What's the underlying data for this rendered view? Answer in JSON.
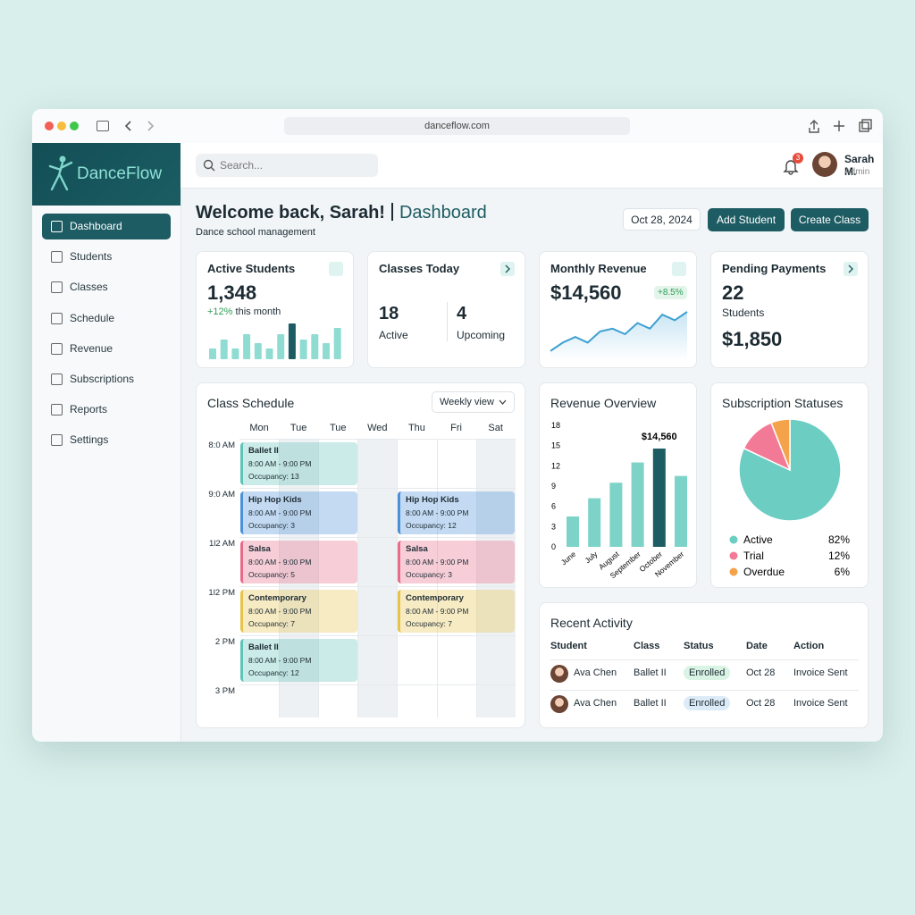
{
  "browser": {
    "url": "danceflow.com"
  },
  "sidebar": {
    "brand": "DanceFlow",
    "nav": [
      "Dashboard",
      "Students",
      "Classes",
      "Schedule",
      "Revenue",
      "Subscriptions",
      "Reports",
      "Settings"
    ]
  },
  "header": {
    "search_placeholder": "Search...",
    "notifications": 3,
    "user": {
      "name": "Sarah M.",
      "role": "Admin"
    }
  },
  "page": {
    "greeting": "Welcome back, Sarah!",
    "title": "Dashboard",
    "subtitle": "Dance school management",
    "date": "Oct 28, 2024",
    "actions": [
      "Add Student",
      "Create Class"
    ]
  },
  "cards": {
    "active_students": {
      "title": "Active Students",
      "value": "1,348",
      "change": "+12%",
      "change_note": "this month",
      "bars": [
        12,
        22,
        12,
        28,
        18,
        12,
        28,
        40,
        22,
        28,
        18,
        35
      ]
    },
    "classes_today": {
      "title": "Classes Today",
      "active": 18,
      "active_label": "Active",
      "upcoming": 4,
      "upcoming_label": "Upcoming"
    },
    "monthly_revenue": {
      "title": "Monthly Revenue",
      "value": "$14,560",
      "change": "+8.5%",
      "trend": [
        2,
        5,
        7,
        5,
        9,
        10,
        8,
        12,
        10,
        15,
        13,
        16
      ]
    },
    "pending_payments": {
      "title": "Pending Payments",
      "count": 22,
      "count_label": "Students",
      "amount": "$1,850"
    }
  },
  "schedule": {
    "title": "Class Schedule",
    "view": "Weekly view",
    "days": [
      "Mon",
      "Tue",
      "Tue",
      "Wed",
      "Thu",
      "Fri",
      "Sat"
    ],
    "rows": [
      {
        "time": "8:0 AM",
        "left": {
          "name": "Ballet II",
          "time": "8:00 AM - 9:00 PM",
          "occupancy": "Occupancy: 13",
          "color": "#5fc4b8"
        }
      },
      {
        "time": "9:0 AM",
        "left": {
          "name": "Hip Hop Kids",
          "time": "8:00 AM - 9:00 PM",
          "occupancy": "Occupancy: 3",
          "color": "#4a90d9"
        },
        "right": {
          "name": "Hip Hop Kids",
          "time": "8:00 AM - 9:00 PM",
          "occupancy": "Occupancy: 12",
          "color": "#4a90d9"
        }
      },
      {
        "time": "1l2 AM",
        "left": {
          "name": "Salsa",
          "time": "8:00 AM - 9:00 PM",
          "occupancy": "Occupancy: 5",
          "color": "#e86b8a"
        },
        "right": {
          "name": "Salsa",
          "time": "8:00 AM - 9:00 PM",
          "occupancy": "Occupancy: 3",
          "color": "#e86b8a"
        }
      },
      {
        "time": "1l2 PM",
        "left": {
          "name": "Contemporary",
          "time": "8:00 AM - 9:00 PM",
          "occupancy": "Occupancy: 7",
          "color": "#e8c34a"
        },
        "right": {
          "name": "Contemporary",
          "time": "8:00 AM - 9:00 PM",
          "occupancy": "Occupancy: 7",
          "color": "#e8c34a"
        }
      },
      {
        "time": "2 PM",
        "left": {
          "name": "Ballet II",
          "time": "8:00 AM - 9:00 PM",
          "occupancy": "Occupancy: 12",
          "color": "#5fc4b8"
        }
      },
      {
        "time": "3 PM"
      }
    ]
  },
  "chart_data": [
    {
      "type": "bar",
      "title": "Revenue Overview",
      "categories": [
        "June",
        "July",
        "August",
        "September",
        "October",
        "November"
      ],
      "values": [
        4.5,
        7.2,
        9.5,
        12.5,
        14.56,
        10.5
      ],
      "value_labels": [
        null,
        null,
        null,
        null,
        "$14,560",
        null
      ],
      "ylim": [
        0,
        18
      ],
      "yticks": [
        0,
        3,
        6,
        9,
        12,
        15,
        18
      ],
      "color": "#7dd3c8",
      "highlight_color": "#1d5c63"
    },
    {
      "type": "pie",
      "title": "Subscription Statuses",
      "categories": [
        "Active",
        "Trial",
        "Overdue"
      ],
      "values": [
        82,
        12,
        6
      ],
      "value_labels": [
        "82%",
        "12%",
        "6%"
      ],
      "colors": [
        "#6ccdc3",
        "#f37a96",
        "#f5a34b"
      ]
    }
  ],
  "recent_activity": {
    "title": "Recent Activity",
    "columns": [
      "Student",
      "Class",
      "Status",
      "Date",
      "Action"
    ],
    "rows": [
      [
        "Ava Chen",
        "Ballet II",
        "Enrolled",
        "Oct 28",
        "Invoice Sent"
      ],
      [
        "Ava Chen",
        "Ballet II",
        "Enrolled",
        "Oct 28",
        "Invoice Sent"
      ]
    ]
  }
}
